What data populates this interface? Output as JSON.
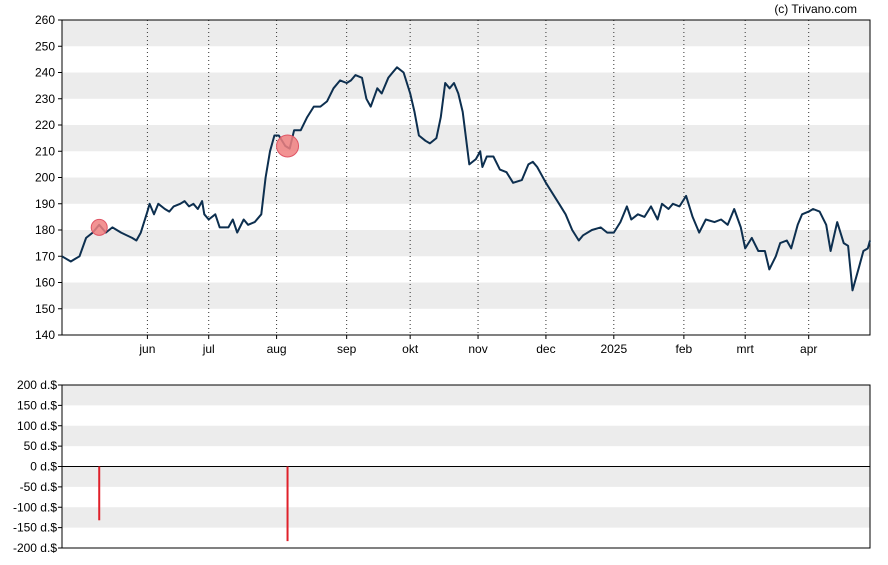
{
  "credit": "(c) Trivano.com",
  "colors": {
    "price_line": "#0d2f4f",
    "band": "#ececec",
    "marker_fill": "#f08080",
    "marker_stroke": "#e05565",
    "transaction_bar": "#e0202a",
    "axis": "#000000",
    "grid_vertical": "#333333"
  },
  "chart_data": [
    {
      "type": "line",
      "name": "price-chart",
      "ylim": [
        140,
        260
      ],
      "y_ticks": [
        140,
        150,
        160,
        170,
        180,
        190,
        200,
        210,
        220,
        230,
        240,
        250,
        260
      ],
      "grid": "dotted vertical month lines, alternating horizontal bands",
      "x_range": [
        "2024-04-25",
        "2025-04-29"
      ],
      "x_ticks": [
        {
          "label": "jun",
          "date": "2024-06-03"
        },
        {
          "label": "jul",
          "date": "2024-07-01"
        },
        {
          "label": "aug",
          "date": "2024-08-01"
        },
        {
          "label": "sep",
          "date": "2024-09-02"
        },
        {
          "label": "okt",
          "date": "2024-10-01"
        },
        {
          "label": "nov",
          "date": "2024-11-01"
        },
        {
          "label": "dec",
          "date": "2024-12-02"
        },
        {
          "label": "2025",
          "date": "2025-01-02"
        },
        {
          "label": "feb",
          "date": "2025-02-03"
        },
        {
          "label": "mrt",
          "date": "2025-03-03"
        },
        {
          "label": "apr",
          "date": "2025-04-01"
        }
      ],
      "series": [
        {
          "points": [
            [
              "2024-04-25",
              170
            ],
            [
              "2024-04-29",
              168
            ],
            [
              "2024-05-01",
              169
            ],
            [
              "2024-05-03",
              170
            ],
            [
              "2024-05-06",
              177
            ],
            [
              "2024-05-09",
              179
            ],
            [
              "2024-05-12",
              182
            ],
            [
              "2024-05-15",
              179
            ],
            [
              "2024-05-18",
              181
            ],
            [
              "2024-05-22",
              179
            ],
            [
              "2024-05-27",
              177
            ],
            [
              "2024-05-29",
              176
            ],
            [
              "2024-05-31",
              179
            ],
            [
              "2024-06-03",
              187
            ],
            [
              "2024-06-04",
              190
            ],
            [
              "2024-06-06",
              186
            ],
            [
              "2024-06-08",
              190
            ],
            [
              "2024-06-11",
              188
            ],
            [
              "2024-06-13",
              187
            ],
            [
              "2024-06-15",
              189
            ],
            [
              "2024-06-18",
              190
            ],
            [
              "2024-06-20",
              191
            ],
            [
              "2024-06-22",
              189
            ],
            [
              "2024-06-24",
              190
            ],
            [
              "2024-06-26",
              188
            ],
            [
              "2024-06-28",
              191
            ],
            [
              "2024-06-29",
              186
            ],
            [
              "2024-07-01",
              184
            ],
            [
              "2024-07-04",
              186
            ],
            [
              "2024-07-06",
              181
            ],
            [
              "2024-07-10",
              181
            ],
            [
              "2024-07-12",
              184
            ],
            [
              "2024-07-14",
              179
            ],
            [
              "2024-07-17",
              184
            ],
            [
              "2024-07-19",
              182
            ],
            [
              "2024-07-22",
              183
            ],
            [
              "2024-07-25",
              186
            ],
            [
              "2024-07-27",
              200
            ],
            [
              "2024-07-29",
              210
            ],
            [
              "2024-07-31",
              216
            ],
            [
              "2024-08-02",
              216
            ],
            [
              "2024-08-05",
              212
            ],
            [
              "2024-08-07",
              211
            ],
            [
              "2024-08-09",
              218
            ],
            [
              "2024-08-12",
              218
            ],
            [
              "2024-08-15",
              223
            ],
            [
              "2024-08-18",
              227
            ],
            [
              "2024-08-21",
              227
            ],
            [
              "2024-08-24",
              229
            ],
            [
              "2024-08-27",
              234
            ],
            [
              "2024-08-30",
              237
            ],
            [
              "2024-09-02",
              236
            ],
            [
              "2024-09-04",
              237
            ],
            [
              "2024-09-06",
              239
            ],
            [
              "2024-09-09",
              238
            ],
            [
              "2024-09-11",
              230
            ],
            [
              "2024-09-13",
              227
            ],
            [
              "2024-09-16",
              234
            ],
            [
              "2024-09-18",
              232
            ],
            [
              "2024-09-21",
              238
            ],
            [
              "2024-09-23",
              240
            ],
            [
              "2024-09-25",
              242
            ],
            [
              "2024-09-28",
              240
            ],
            [
              "2024-10-01",
              232
            ],
            [
              "2024-10-03",
              225
            ],
            [
              "2024-10-05",
              216
            ],
            [
              "2024-10-08",
              214
            ],
            [
              "2024-10-10",
              213
            ],
            [
              "2024-10-13",
              215
            ],
            [
              "2024-10-15",
              223
            ],
            [
              "2024-10-17",
              236
            ],
            [
              "2024-10-19",
              234
            ],
            [
              "2024-10-21",
              236
            ],
            [
              "2024-10-23",
              232
            ],
            [
              "2024-10-25",
              225
            ],
            [
              "2024-10-28",
              205
            ],
            [
              "2024-10-31",
              207
            ],
            [
              "2024-11-02",
              210
            ],
            [
              "2024-11-03",
              204
            ],
            [
              "2024-11-05",
              208
            ],
            [
              "2024-11-08",
              208
            ],
            [
              "2024-11-11",
              203
            ],
            [
              "2024-11-14",
              202
            ],
            [
              "2024-11-17",
              198
            ],
            [
              "2024-11-21",
              199
            ],
            [
              "2024-11-24",
              205
            ],
            [
              "2024-11-26",
              206
            ],
            [
              "2024-11-28",
              204
            ],
            [
              "2024-12-02",
              198
            ],
            [
              "2024-12-05",
              194
            ],
            [
              "2024-12-08",
              190
            ],
            [
              "2024-12-11",
              186
            ],
            [
              "2024-12-14",
              180
            ],
            [
              "2024-12-17",
              176
            ],
            [
              "2024-12-19",
              178
            ],
            [
              "2024-12-23",
              180
            ],
            [
              "2024-12-27",
              181
            ],
            [
              "2024-12-30",
              179
            ],
            [
              "2025-01-02",
              179
            ],
            [
              "2025-01-05",
              183
            ],
            [
              "2025-01-08",
              189
            ],
            [
              "2025-01-10",
              184
            ],
            [
              "2025-01-13",
              186
            ],
            [
              "2025-01-16",
              185
            ],
            [
              "2025-01-19",
              189
            ],
            [
              "2025-01-22",
              184
            ],
            [
              "2025-01-24",
              190
            ],
            [
              "2025-01-27",
              188
            ],
            [
              "2025-01-29",
              190
            ],
            [
              "2025-02-01",
              189
            ],
            [
              "2025-02-04",
              193
            ],
            [
              "2025-02-07",
              185
            ],
            [
              "2025-02-10",
              179
            ],
            [
              "2025-02-13",
              184
            ],
            [
              "2025-02-17",
              183
            ],
            [
              "2025-02-20",
              184
            ],
            [
              "2025-02-23",
              182
            ],
            [
              "2025-02-26",
              188
            ],
            [
              "2025-03-01",
              181
            ],
            [
              "2025-03-03",
              173
            ],
            [
              "2025-03-06",
              177
            ],
            [
              "2025-03-09",
              172
            ],
            [
              "2025-03-12",
              172
            ],
            [
              "2025-03-14",
              165
            ],
            [
              "2025-03-17",
              170
            ],
            [
              "2025-03-19",
              175
            ],
            [
              "2025-03-22",
              176
            ],
            [
              "2025-03-24",
              173
            ],
            [
              "2025-03-27",
              182
            ],
            [
              "2025-03-29",
              186
            ],
            [
              "2025-04-01",
              187
            ],
            [
              "2025-04-03",
              188
            ],
            [
              "2025-04-06",
              187
            ],
            [
              "2025-04-09",
              182
            ],
            [
              "2025-04-11",
              172
            ],
            [
              "2025-04-14",
              183
            ],
            [
              "2025-04-17",
              175
            ],
            [
              "2025-04-19",
              174
            ],
            [
              "2025-04-21",
              157
            ],
            [
              "2025-04-24",
              166
            ],
            [
              "2025-04-26",
              172
            ],
            [
              "2025-04-28",
              173
            ],
            [
              "2025-04-29",
              176
            ]
          ]
        }
      ],
      "markers": [
        {
          "date": "2024-05-12",
          "value": 181,
          "size": "small"
        },
        {
          "date": "2024-08-06",
          "value": 212,
          "size": "large"
        }
      ]
    },
    {
      "type": "bar",
      "name": "transaction-chart",
      "ylim": [
        -200,
        200
      ],
      "y_ticks": [
        200,
        150,
        100,
        50,
        0,
        -50,
        -100,
        -150,
        -200
      ],
      "y_tick_labels": [
        "200 d.$",
        "150 d.$",
        "100 d.$",
        "50 d.$",
        "0 d.$",
        "-50 d.$",
        "-100 d.$",
        "-150 d.$",
        "-200 d.$"
      ],
      "bars": [
        {
          "date": "2024-05-12",
          "value": -132
        },
        {
          "date": "2024-08-06",
          "value": -183
        }
      ]
    }
  ]
}
